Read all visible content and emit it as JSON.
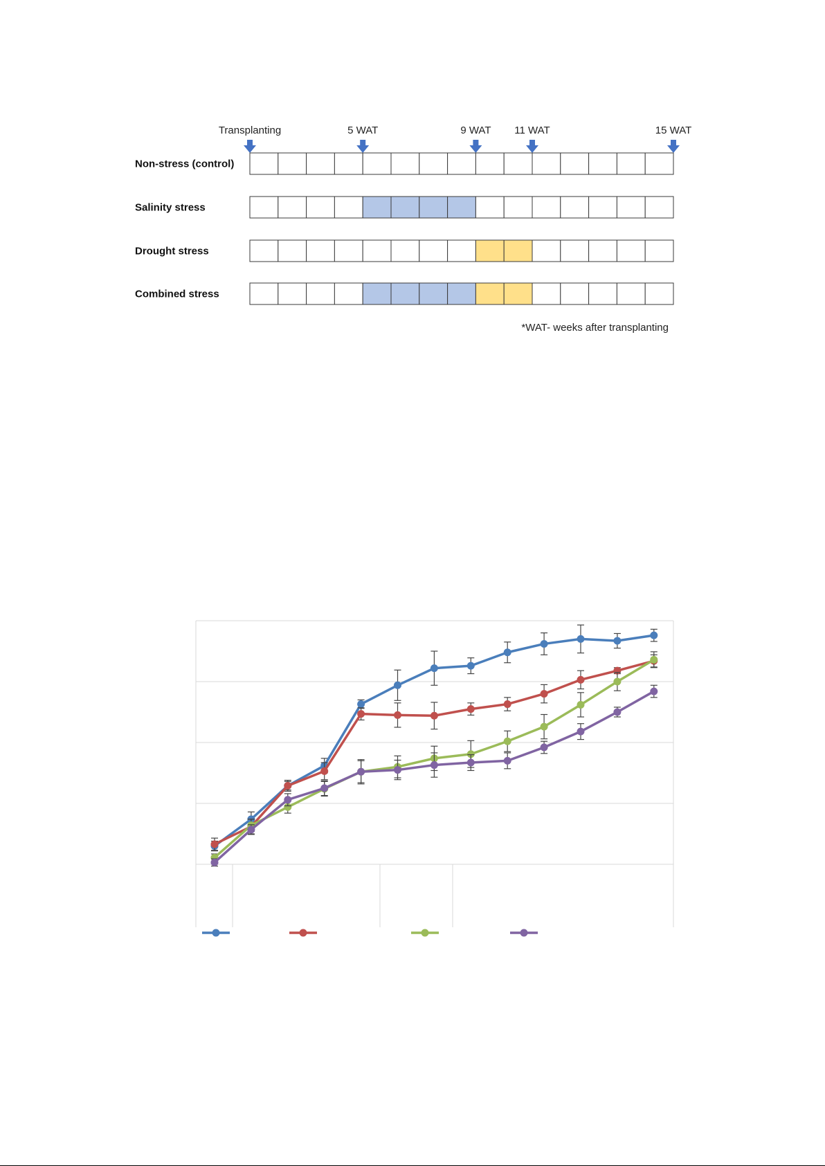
{
  "schedule": {
    "week_count": 15,
    "markers": [
      {
        "label": "Transplanting",
        "week": 0
      },
      {
        "label": "5 WAT",
        "week": 4
      },
      {
        "label": "9 WAT",
        "week": 8
      },
      {
        "label": "11 WAT",
        "week": 10
      },
      {
        "label": "15 WAT",
        "week": 15
      }
    ],
    "rows": [
      {
        "label": "Non-stress (control)",
        "salinity_weeks": [],
        "drought_weeks": []
      },
      {
        "label": "Salinity stress",
        "salinity_weeks": [
          4,
          5,
          6,
          7
        ],
        "drought_weeks": []
      },
      {
        "label": "Drought stress",
        "salinity_weeks": [],
        "drought_weeks": [
          8,
          9
        ]
      },
      {
        "label": "Combined stress",
        "salinity_weeks": [
          4,
          5,
          6,
          7
        ],
        "drought_weeks": [
          8,
          9
        ]
      }
    ],
    "note": "*WAT- weeks after transplanting",
    "colors": {
      "salinity": "#b4c7e7",
      "drought": "#ffe08a",
      "arrow": "#4472c4",
      "cell_border": "#3a3a3a"
    }
  },
  "chart_data": {
    "type": "line",
    "x": [
      1,
      2,
      3,
      4,
      5,
      6,
      7,
      8,
      9,
      10,
      11,
      12,
      13
    ],
    "ylim": [
      0,
      4
    ],
    "grid": true,
    "legend": "bottom",
    "series": [
      {
        "color": "#4a7ebb",
        "values": [
          0.3,
          0.74,
          1.29,
          1.62,
          2.63,
          2.94,
          3.22,
          3.26,
          3.48,
          3.62,
          3.7,
          3.67,
          3.76
        ],
        "errors": [
          0.08,
          0.12,
          0.07,
          0.12,
          0.07,
          0.25,
          0.28,
          0.13,
          0.17,
          0.18,
          0.23,
          0.12,
          0.1
        ]
      },
      {
        "color": "#c0504d",
        "values": [
          0.33,
          0.62,
          1.29,
          1.53,
          2.47,
          2.45,
          2.44,
          2.55,
          2.63,
          2.8,
          3.03,
          3.18,
          3.34
        ],
        "errors": [
          0.1,
          0.12,
          0.09,
          0.14,
          0.1,
          0.2,
          0.22,
          0.1,
          0.11,
          0.15,
          0.15,
          0.05,
          0.1
        ]
      },
      {
        "color": "#9bbb59",
        "values": [
          0.11,
          0.64,
          0.94,
          1.24,
          1.52,
          1.6,
          1.74,
          1.81,
          2.02,
          2.26,
          2.62,
          3.0,
          3.36
        ],
        "errors": [
          0.06,
          0.1,
          0.1,
          0.12,
          0.18,
          0.18,
          0.2,
          0.22,
          0.17,
          0.2,
          0.2,
          0.15,
          0.13
        ]
      },
      {
        "color": "#8064a2",
        "values": [
          0.03,
          0.57,
          1.06,
          1.25,
          1.52,
          1.55,
          1.63,
          1.67,
          1.7,
          1.92,
          2.18,
          2.5,
          2.84
        ],
        "errors": [
          0.06,
          0.08,
          0.1,
          0.12,
          0.2,
          0.16,
          0.2,
          0.13,
          0.13,
          0.1,
          0.13,
          0.08,
          0.1
        ]
      }
    ]
  }
}
